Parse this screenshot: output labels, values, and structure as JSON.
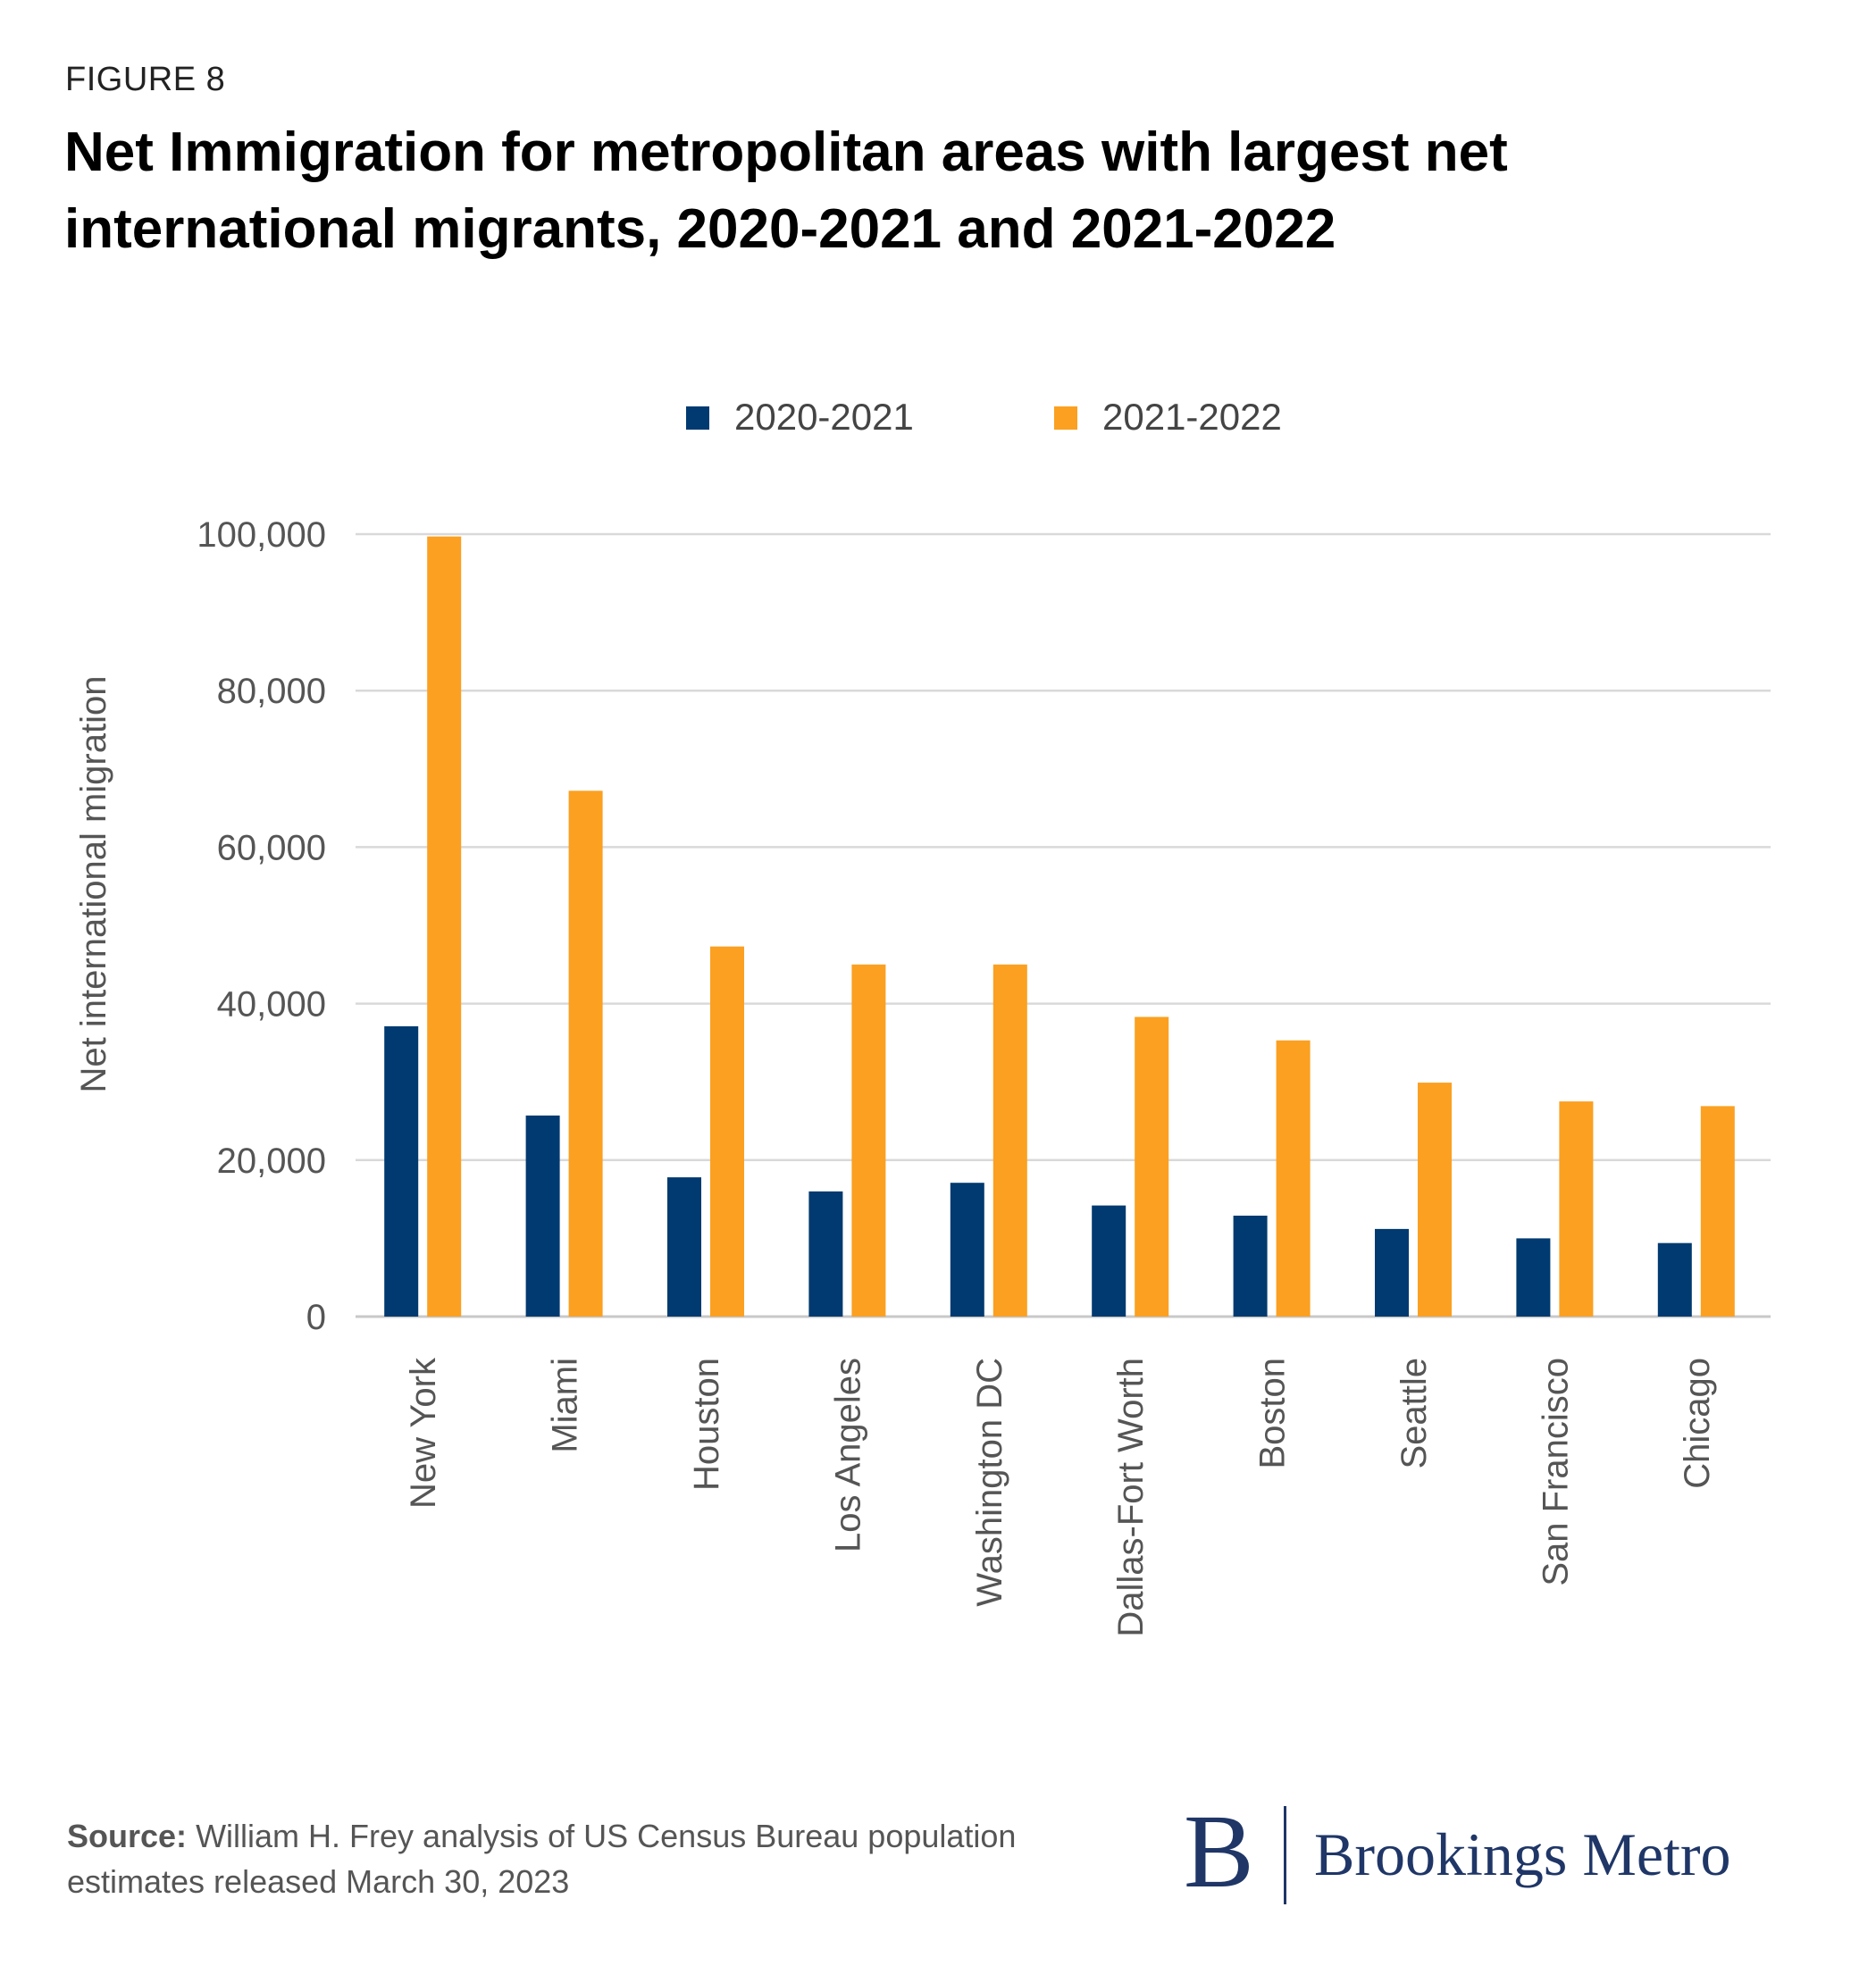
{
  "figure_label": "FIGURE 8",
  "title": "Net Immigration for metropolitan areas with largest net international migrants, 2020-2021 and 2021-2022",
  "source_label": "Source:",
  "source_text": "William H. Frey analysis of US Census Bureau population estimates released March 30, 2023",
  "logo": {
    "mark": "B",
    "text": "Brookings Metro",
    "color": "#1f3667"
  },
  "chart_data": {
    "type": "bar",
    "ylabel": "Net international migration",
    "xlabel": "",
    "ylim": [
      0,
      100000
    ],
    "yticks": [
      0,
      20000,
      40000,
      60000,
      80000,
      100000
    ],
    "ytick_labels": [
      "0",
      "20,000",
      "40,000",
      "60,000",
      "80,000",
      "100,000"
    ],
    "grid": true,
    "legend_position": "top-center",
    "categories": [
      "New York",
      "Miami",
      "Houston",
      "Los Angeles",
      "Washington DC",
      "Dallas-Fort Worth",
      "Boston",
      "Seattle",
      "San Francisco",
      "Chicago"
    ],
    "series": [
      {
        "name": "2020-2021",
        "color": "#003a70",
        "values": [
          37100,
          25700,
          17800,
          16000,
          17100,
          14200,
          12900,
          11200,
          10000,
          9400
        ]
      },
      {
        "name": "2021-2022",
        "color": "#fba021",
        "values": [
          99700,
          67200,
          47300,
          45000,
          45000,
          38300,
          35300,
          29900,
          27500,
          26900
        ]
      }
    ]
  }
}
